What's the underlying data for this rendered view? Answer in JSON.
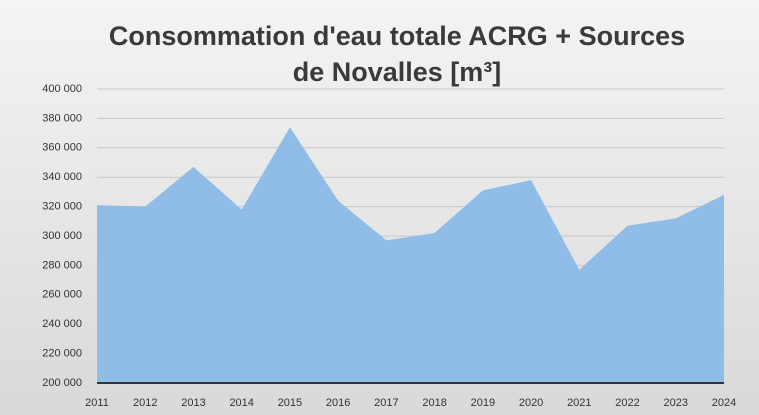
{
  "chart_data": {
    "type": "area",
    "title": [
      "Consommation d'eau totale ACRG + Sources",
      "de Novalles [m³]"
    ],
    "categories": [
      "2011",
      "2012",
      "2013",
      "2014",
      "2015",
      "2016",
      "2017",
      "2018",
      "2019",
      "2020",
      "2021",
      "2022",
      "2023",
      "2024"
    ],
    "values": [
      321000,
      320000,
      347000,
      318000,
      374000,
      324000,
      297000,
      302000,
      331000,
      338000,
      277000,
      307000,
      312000,
      328000
    ],
    "color": "#8fbde8",
    "ylim": [
      200000,
      400000
    ],
    "yticks": [
      {
        "value": 200000,
        "label": "200 000"
      },
      {
        "value": 220000,
        "label": "220 000"
      },
      {
        "value": 240000,
        "label": "240 000"
      },
      {
        "value": 260000,
        "label": "260 000"
      },
      {
        "value": 280000,
        "label": "280 000"
      },
      {
        "value": 300000,
        "label": "300 000"
      },
      {
        "value": 320000,
        "label": "320 000"
      },
      {
        "value": 340000,
        "label": "340 000"
      },
      {
        "value": 360000,
        "label": "360 000"
      },
      {
        "value": 380000,
        "label": "380 000"
      },
      {
        "value": 400000,
        "label": "400 000"
      }
    ],
    "grid": true
  }
}
